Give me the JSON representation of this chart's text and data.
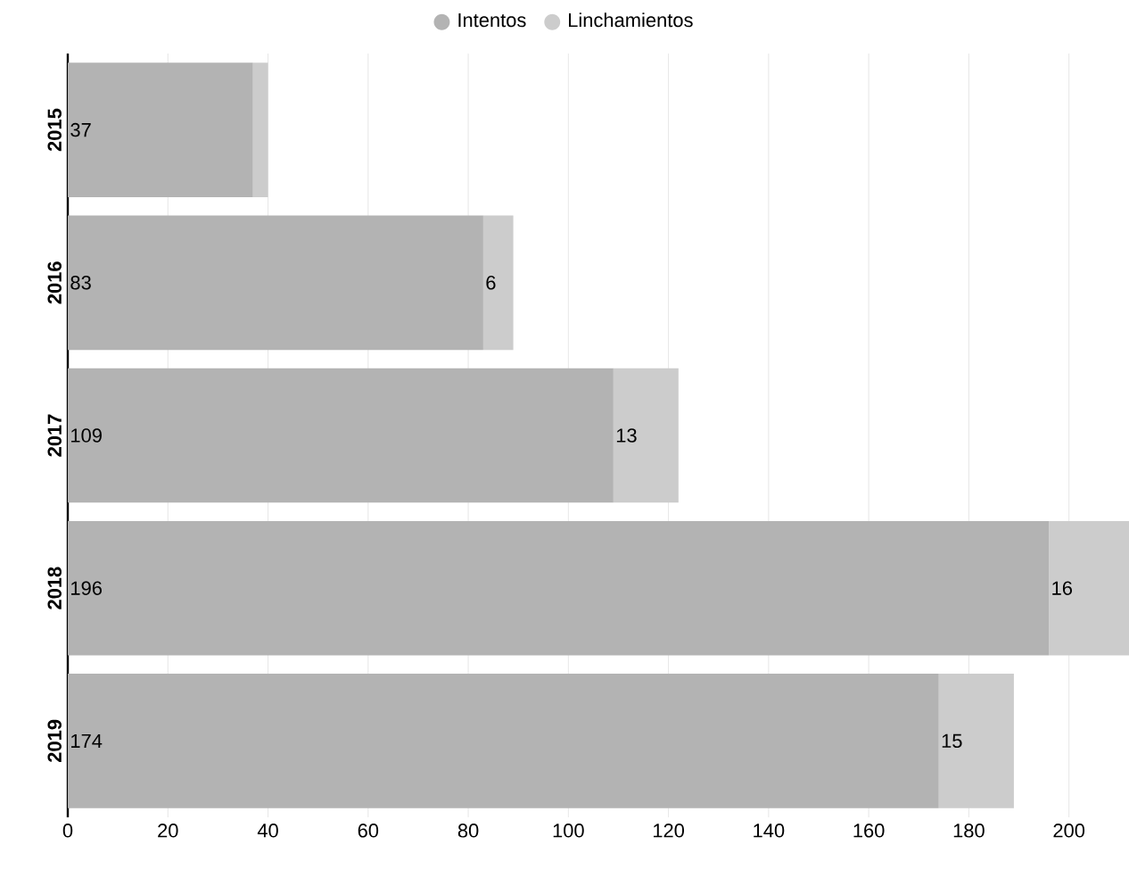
{
  "chart_data": {
    "type": "bar",
    "orientation": "horizontal",
    "stacked": true,
    "categories": [
      "2015",
      "2016",
      "2017",
      "2018",
      "2019"
    ],
    "series": [
      {
        "name": "Intentos",
        "color": "#b3b3b3",
        "values": [
          37,
          83,
          109,
          196,
          174
        ],
        "value_labels": [
          "37",
          "83",
          "109",
          "196",
          "174"
        ]
      },
      {
        "name": "Linchamientos",
        "color": "#cccccc",
        "values": [
          3,
          6,
          13,
          16,
          15
        ],
        "value_labels": [
          null,
          "6",
          "13",
          "16",
          "15"
        ]
      }
    ],
    "xlim": [
      0,
      212
    ],
    "xticks": [
      0,
      20,
      40,
      60,
      80,
      100,
      120,
      140,
      160,
      180,
      200
    ],
    "grid": "x",
    "legend": "top"
  }
}
